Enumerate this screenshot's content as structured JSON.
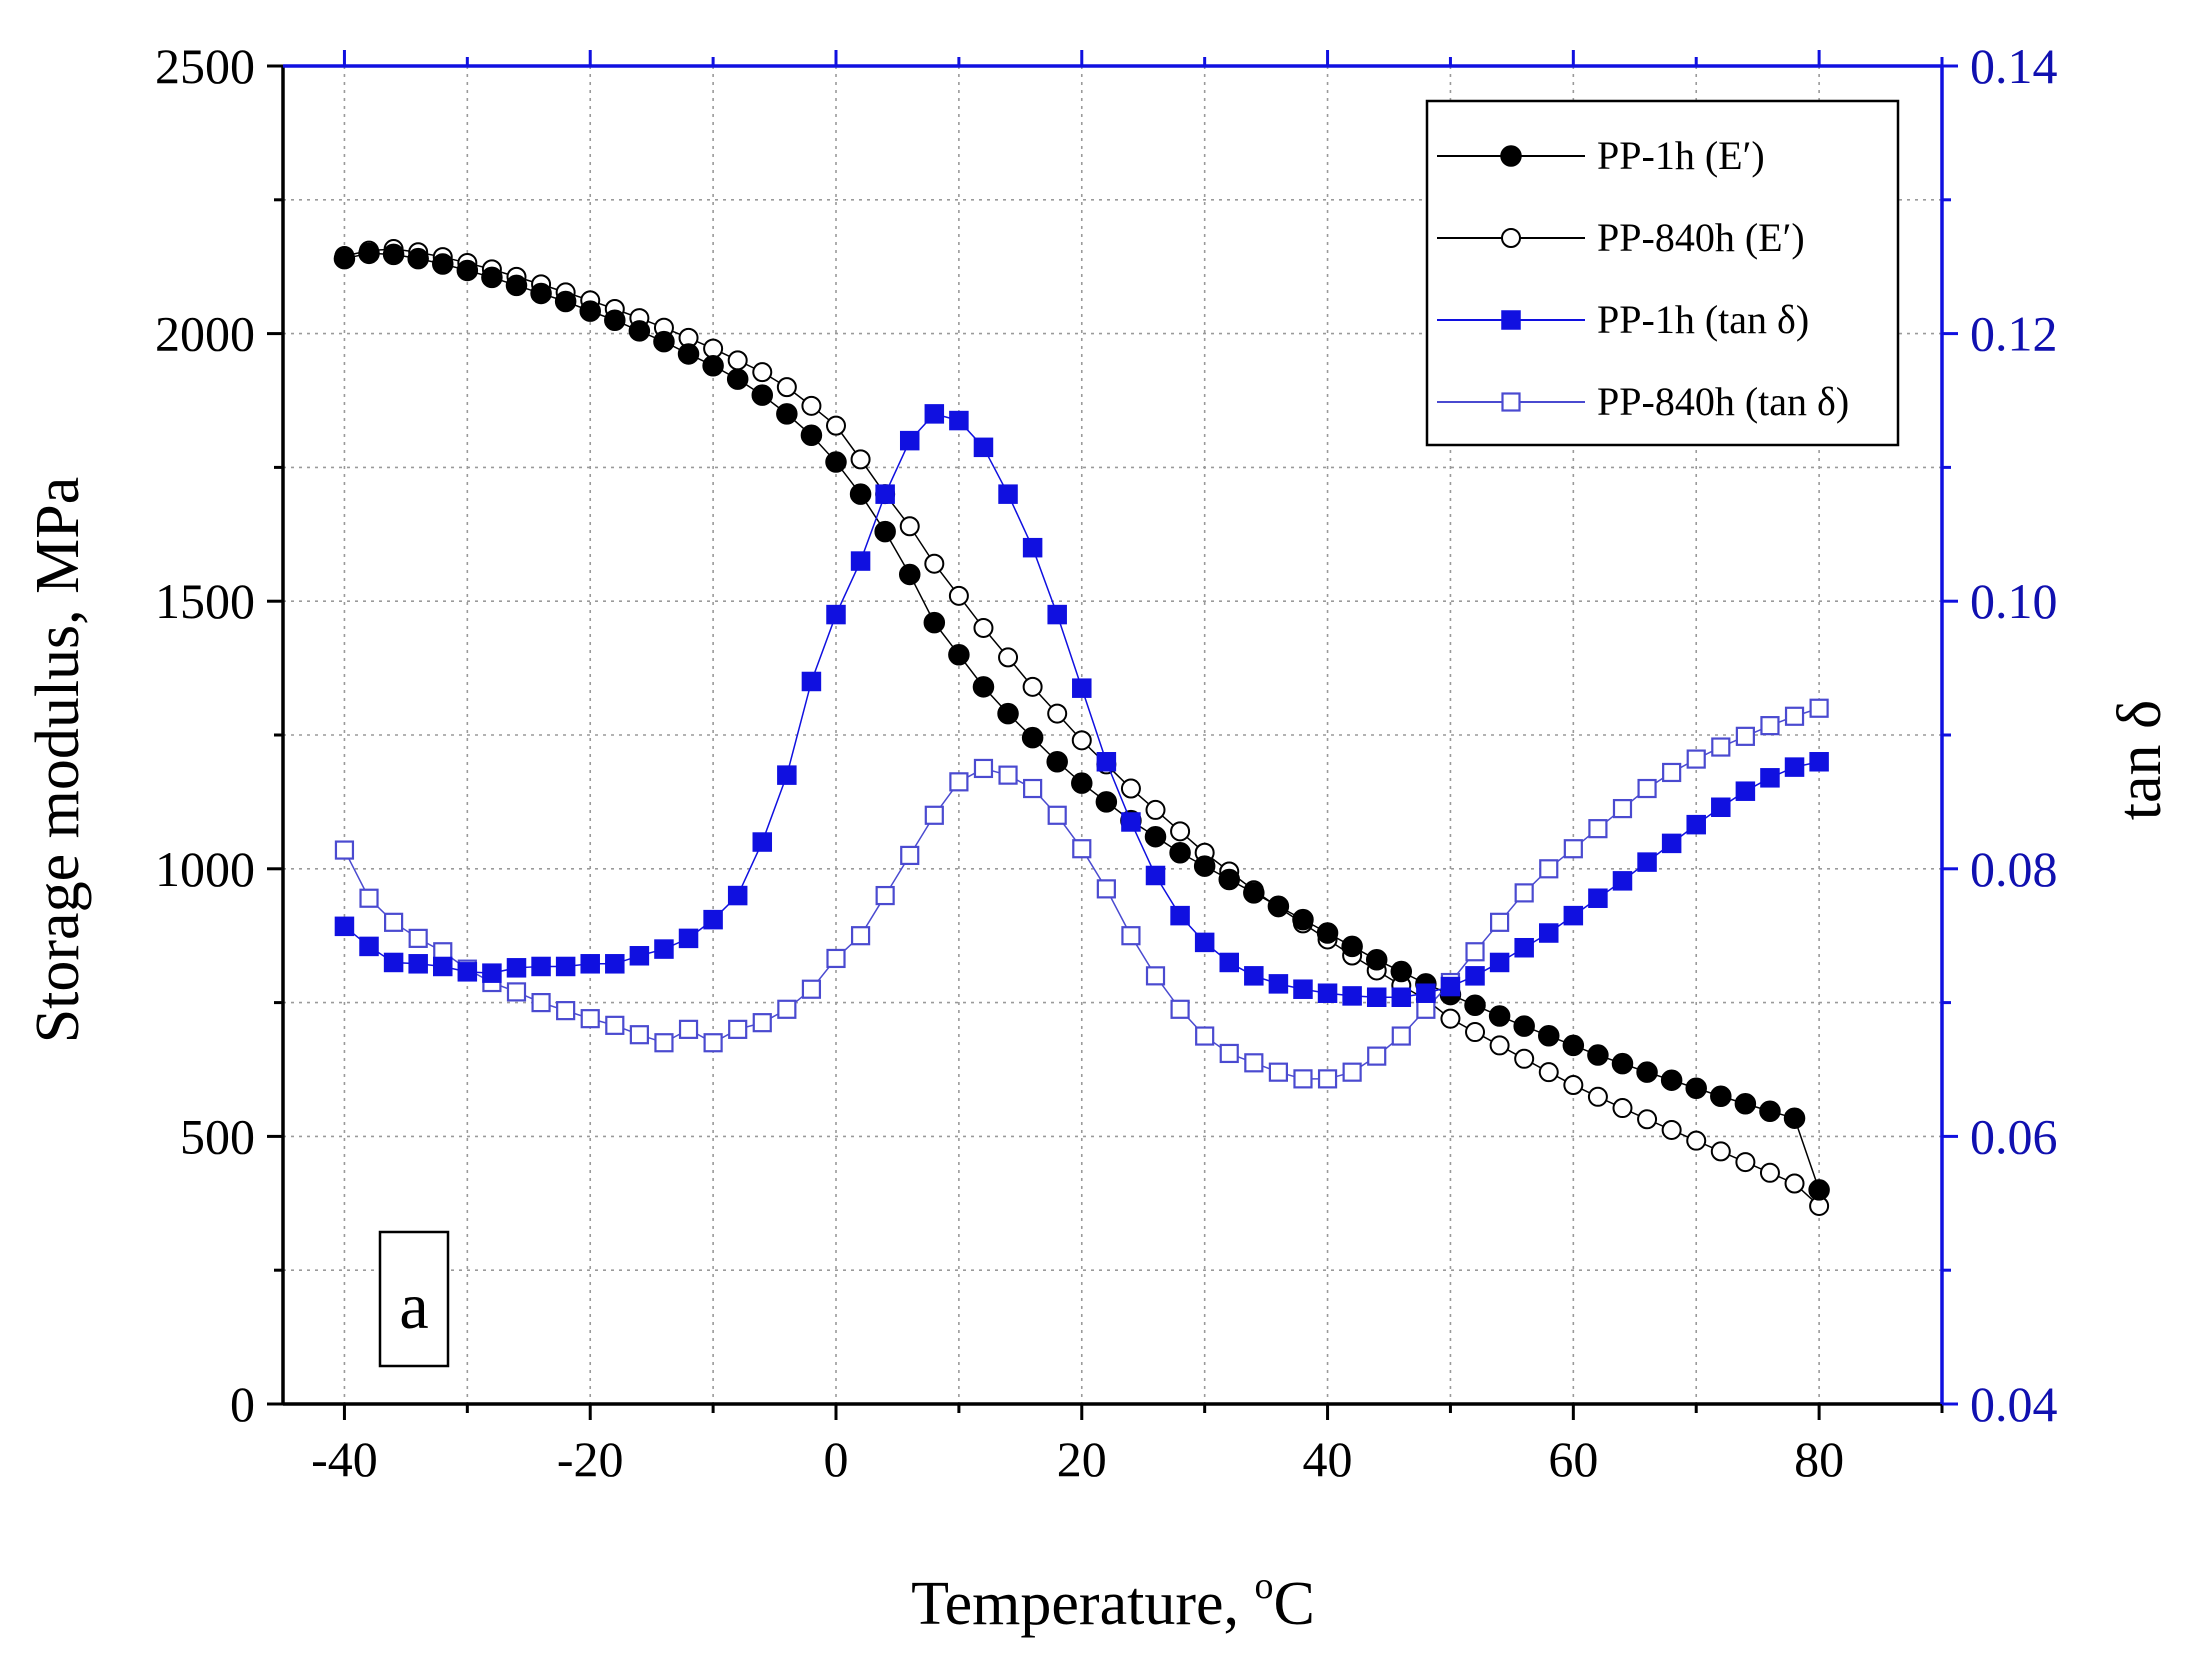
{
  "chart_data": {
    "type": "scatter",
    "xlabel": "Temperature, ",
    "xlabel_unit_sup": "o",
    "xlabel_unit": "C",
    "ylabel_left": "Storage modulus, MPa",
    "ylabel_right": "tan δ",
    "xlim": [
      -45,
      90
    ],
    "ylim_left": [
      0,
      2500
    ],
    "ylim_right": [
      0.04,
      0.14
    ],
    "xticks": [
      "-40",
      "-20",
      "0",
      "20",
      "40",
      "60",
      "80"
    ],
    "xtick_values": [
      -40,
      -20,
      0,
      20,
      40,
      60,
      80
    ],
    "yticks_left": [
      "0",
      "500",
      "1000",
      "1500",
      "2000",
      "2500"
    ],
    "ytick_values_left": [
      0,
      500,
      1000,
      1500,
      2000,
      2500
    ],
    "yticks_right": [
      "0.04",
      "0.06",
      "0.08",
      "0.10",
      "0.12",
      "0.14"
    ],
    "ytick_values_right": [
      0.04,
      0.06,
      0.08,
      0.1,
      0.12,
      0.14
    ],
    "grid": true,
    "legend_position": "top-right",
    "panel_label": "a",
    "series": [
      {
        "name": "PP-1h",
        "name_suffix": "(E′)",
        "axis": "left",
        "marker": "filled-circle",
        "color": "#000000",
        "points": [
          [
            -40,
            2140
          ],
          [
            -38,
            2150
          ],
          [
            -36,
            2148
          ],
          [
            -34,
            2140
          ],
          [
            -32,
            2130
          ],
          [
            -30,
            2118
          ],
          [
            -28,
            2105
          ],
          [
            -26,
            2090
          ],
          [
            -24,
            2075
          ],
          [
            -22,
            2060
          ],
          [
            -20,
            2042
          ],
          [
            -18,
            2025
          ],
          [
            -16,
            2005
          ],
          [
            -14,
            1985
          ],
          [
            -12,
            1962
          ],
          [
            -10,
            1940
          ],
          [
            -8,
            1915
          ],
          [
            -6,
            1885
          ],
          [
            -4,
            1850
          ],
          [
            -2,
            1810
          ],
          [
            0,
            1760
          ],
          [
            2,
            1700
          ],
          [
            4,
            1630
          ],
          [
            6,
            1550
          ],
          [
            8,
            1460
          ],
          [
            10,
            1400
          ],
          [
            12,
            1340
          ],
          [
            14,
            1290
          ],
          [
            16,
            1245
          ],
          [
            18,
            1200
          ],
          [
            20,
            1160
          ],
          [
            22,
            1125
          ],
          [
            24,
            1090
          ],
          [
            26,
            1060
          ],
          [
            28,
            1030
          ],
          [
            30,
            1005
          ],
          [
            32,
            980
          ],
          [
            34,
            955
          ],
          [
            36,
            930
          ],
          [
            38,
            905
          ],
          [
            40,
            880
          ],
          [
            42,
            855
          ],
          [
            44,
            830
          ],
          [
            46,
            808
          ],
          [
            48,
            785
          ],
          [
            50,
            765
          ],
          [
            52,
            745
          ],
          [
            54,
            725
          ],
          [
            56,
            706
          ],
          [
            58,
            688
          ],
          [
            60,
            670
          ],
          [
            62,
            652
          ],
          [
            64,
            636
          ],
          [
            66,
            620
          ],
          [
            68,
            605
          ],
          [
            70,
            590
          ],
          [
            72,
            575
          ],
          [
            74,
            561
          ],
          [
            76,
            547
          ],
          [
            78,
            534
          ],
          [
            80,
            400
          ]
        ]
      },
      {
        "name": "PP-840h",
        "name_suffix": "(E′)",
        "axis": "left",
        "marker": "open-circle",
        "color": "#000000",
        "points": [
          [
            -40,
            2145
          ],
          [
            -38,
            2155
          ],
          [
            -36,
            2158
          ],
          [
            -34,
            2152
          ],
          [
            -32,
            2143
          ],
          [
            -30,
            2132
          ],
          [
            -28,
            2120
          ],
          [
            -26,
            2106
          ],
          [
            -24,
            2092
          ],
          [
            -22,
            2077
          ],
          [
            -20,
            2062
          ],
          [
            -18,
            2046
          ],
          [
            -16,
            2029
          ],
          [
            -14,
            2011
          ],
          [
            -12,
            1992
          ],
          [
            -10,
            1972
          ],
          [
            -8,
            1950
          ],
          [
            -6,
            1928
          ],
          [
            -4,
            1900
          ],
          [
            -2,
            1865
          ],
          [
            0,
            1828
          ],
          [
            2,
            1765
          ],
          [
            4,
            1700
          ],
          [
            6,
            1640
          ],
          [
            8,
            1570
          ],
          [
            10,
            1510
          ],
          [
            12,
            1450
          ],
          [
            14,
            1395
          ],
          [
            16,
            1340
          ],
          [
            18,
            1290
          ],
          [
            20,
            1240
          ],
          [
            22,
            1195
          ],
          [
            24,
            1150
          ],
          [
            26,
            1110
          ],
          [
            28,
            1070
          ],
          [
            30,
            1030
          ],
          [
            32,
            995
          ],
          [
            34,
            960
          ],
          [
            36,
            928
          ],
          [
            38,
            898
          ],
          [
            40,
            868
          ],
          [
            42,
            838
          ],
          [
            44,
            810
          ],
          [
            46,
            782
          ],
          [
            48,
            756
          ],
          [
            50,
            720
          ],
          [
            52,
            695
          ],
          [
            54,
            670
          ],
          [
            56,
            645
          ],
          [
            58,
            620
          ],
          [
            60,
            596
          ],
          [
            62,
            574
          ],
          [
            64,
            553
          ],
          [
            66,
            532
          ],
          [
            68,
            512
          ],
          [
            70,
            492
          ],
          [
            72,
            472
          ],
          [
            74,
            452
          ],
          [
            76,
            432
          ],
          [
            78,
            412
          ],
          [
            80,
            370
          ]
        ]
      },
      {
        "name": "PP-1h",
        "name_suffix": "(tan δ)",
        "axis": "right",
        "marker": "filled-square",
        "color": "#1010e0",
        "points": [
          [
            -40,
            0.0757
          ],
          [
            -38,
            0.0742
          ],
          [
            -36,
            0.073
          ],
          [
            -34,
            0.0729
          ],
          [
            -32,
            0.0727
          ],
          [
            -30,
            0.0723
          ],
          [
            -28,
            0.0722
          ],
          [
            -26,
            0.0726
          ],
          [
            -24,
            0.0727
          ],
          [
            -22,
            0.0727
          ],
          [
            -20,
            0.0729
          ],
          [
            -18,
            0.0729
          ],
          [
            -16,
            0.0735
          ],
          [
            -14,
            0.074
          ],
          [
            -12,
            0.0748
          ],
          [
            -10,
            0.0762
          ],
          [
            -8,
            0.078
          ],
          [
            -6,
            0.082
          ],
          [
            -4,
            0.087
          ],
          [
            -2,
            0.094
          ],
          [
            0,
            0.099
          ],
          [
            2,
            0.103
          ],
          [
            4,
            0.108
          ],
          [
            6,
            0.112
          ],
          [
            8,
            0.114
          ],
          [
            10,
            0.1135
          ],
          [
            12,
            0.1115
          ],
          [
            14,
            0.108
          ],
          [
            16,
            0.104
          ],
          [
            18,
            0.099
          ],
          [
            20,
            0.0935
          ],
          [
            22,
            0.088
          ],
          [
            24,
            0.0835
          ],
          [
            26,
            0.0795
          ],
          [
            28,
            0.0765
          ],
          [
            30,
            0.0745
          ],
          [
            32,
            0.073
          ],
          [
            34,
            0.072
          ],
          [
            36,
            0.0714
          ],
          [
            38,
            0.071
          ],
          [
            40,
            0.0707
          ],
          [
            42,
            0.0705
          ],
          [
            44,
            0.0704
          ],
          [
            46,
            0.0704
          ],
          [
            48,
            0.0707
          ],
          [
            50,
            0.0712
          ],
          [
            52,
            0.072
          ],
          [
            54,
            0.073
          ],
          [
            56,
            0.0741
          ],
          [
            58,
            0.0752
          ],
          [
            60,
            0.0765
          ],
          [
            62,
            0.0778
          ],
          [
            64,
            0.0791
          ],
          [
            66,
            0.0805
          ],
          [
            68,
            0.0819
          ],
          [
            70,
            0.0833
          ],
          [
            72,
            0.0846
          ],
          [
            74,
            0.0858
          ],
          [
            76,
            0.0868
          ],
          [
            78,
            0.0876
          ],
          [
            80,
            0.088
          ]
        ]
      },
      {
        "name": "PP-840h",
        "name_suffix": "(tan δ)",
        "axis": "right",
        "marker": "open-square",
        "color": "#4a4ad0",
        "points": [
          [
            -40,
            0.0814
          ],
          [
            -38,
            0.0778
          ],
          [
            -36,
            0.076
          ],
          [
            -34,
            0.0748
          ],
          [
            -32,
            0.0738
          ],
          [
            -30,
            0.0725
          ],
          [
            -28,
            0.0715
          ],
          [
            -26,
            0.0708
          ],
          [
            -24,
            0.07
          ],
          [
            -22,
            0.0694
          ],
          [
            -20,
            0.0688
          ],
          [
            -18,
            0.0683
          ],
          [
            -16,
            0.0676
          ],
          [
            -14,
            0.067
          ],
          [
            -12,
            0.068
          ],
          [
            -10,
            0.067
          ],
          [
            -8,
            0.068
          ],
          [
            -6,
            0.0685
          ],
          [
            -4,
            0.0695
          ],
          [
            -2,
            0.071
          ],
          [
            0,
            0.0733
          ],
          [
            2,
            0.075
          ],
          [
            4,
            0.078
          ],
          [
            6,
            0.081
          ],
          [
            8,
            0.084
          ],
          [
            10,
            0.0865
          ],
          [
            12,
            0.0875
          ],
          [
            14,
            0.087
          ],
          [
            16,
            0.086
          ],
          [
            18,
            0.084
          ],
          [
            20,
            0.0815
          ],
          [
            22,
            0.0785
          ],
          [
            24,
            0.075
          ],
          [
            26,
            0.072
          ],
          [
            28,
            0.0695
          ],
          [
            30,
            0.0675
          ],
          [
            32,
            0.0662
          ],
          [
            34,
            0.0655
          ],
          [
            36,
            0.0648
          ],
          [
            38,
            0.0643
          ],
          [
            40,
            0.0643
          ],
          [
            42,
            0.0648
          ],
          [
            44,
            0.066
          ],
          [
            46,
            0.0675
          ],
          [
            48,
            0.0695
          ],
          [
            50,
            0.0715
          ],
          [
            52,
            0.0738
          ],
          [
            54,
            0.076
          ],
          [
            56,
            0.0782
          ],
          [
            58,
            0.08
          ],
          [
            60,
            0.0815
          ],
          [
            62,
            0.083
          ],
          [
            64,
            0.0845
          ],
          [
            66,
            0.086
          ],
          [
            68,
            0.0872
          ],
          [
            70,
            0.0882
          ],
          [
            72,
            0.0891
          ],
          [
            74,
            0.0899
          ],
          [
            76,
            0.0907
          ],
          [
            78,
            0.0914
          ],
          [
            80,
            0.092
          ]
        ]
      }
    ]
  }
}
